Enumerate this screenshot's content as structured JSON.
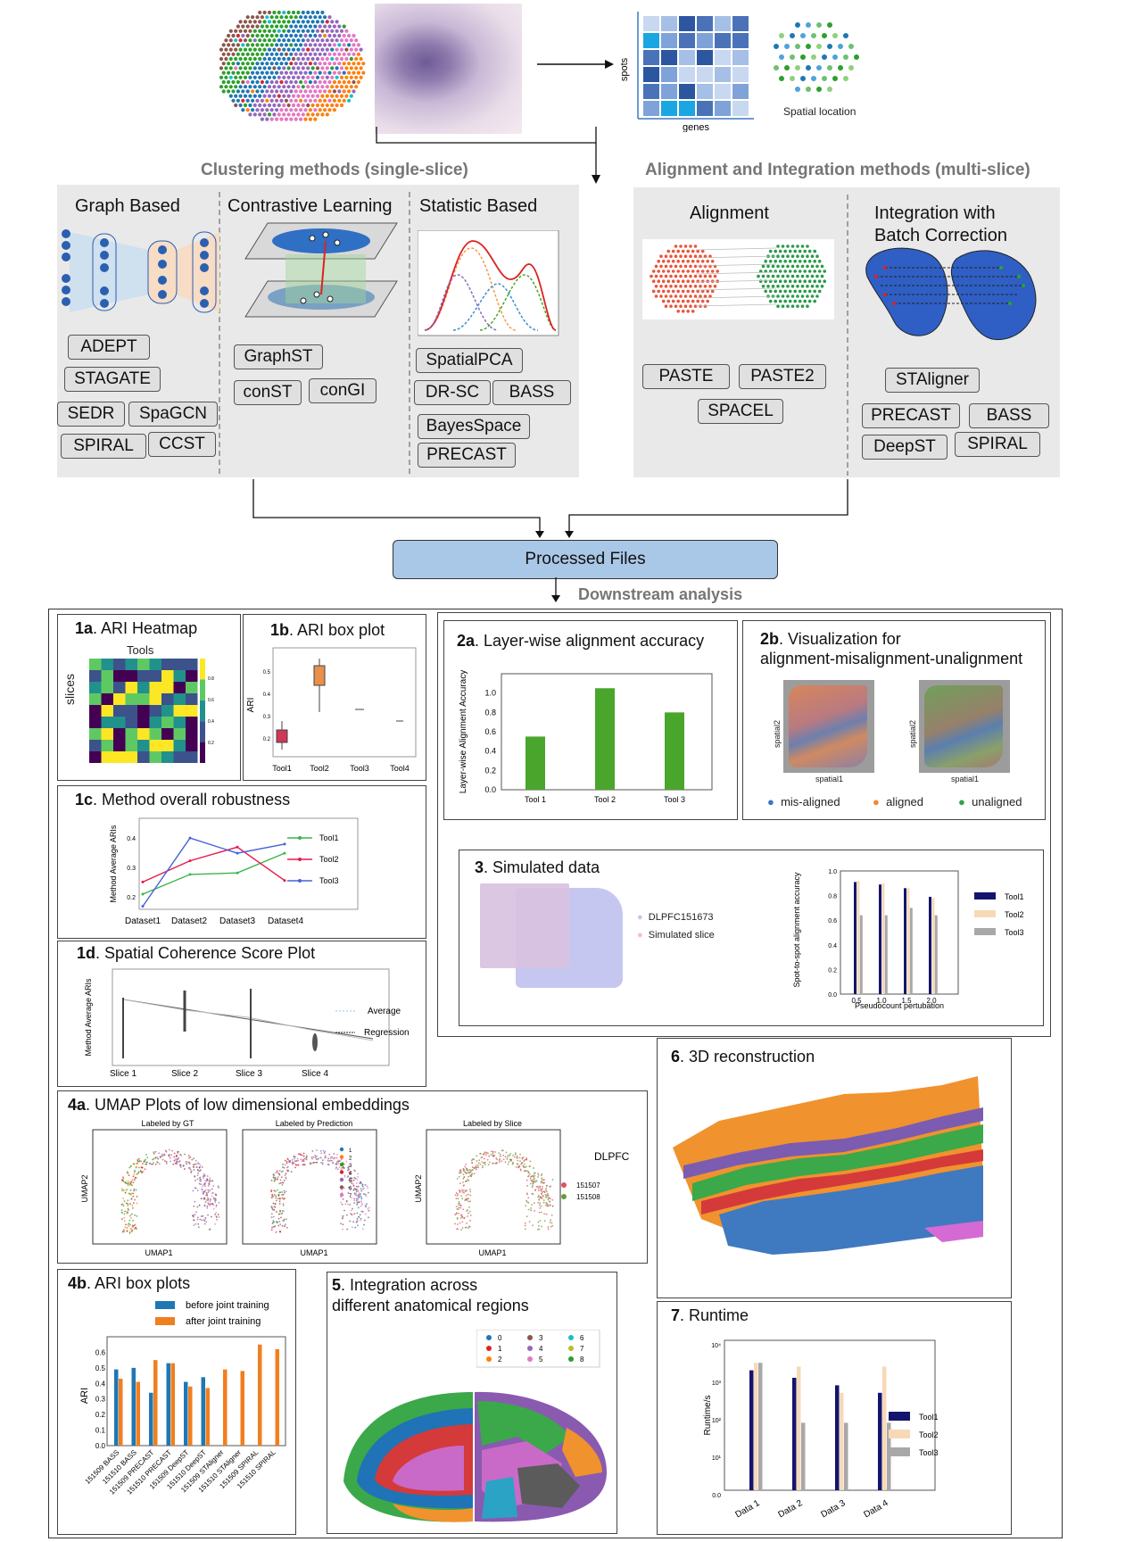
{
  "top": {
    "matrix_ylabel": "spots",
    "matrix_xlabel": "genes",
    "spatial_label": "Spatial location"
  },
  "sections": {
    "clustering": "Clustering methods (single-slice)",
    "alignment_integration": "Alignment and Integration methods (multi-slice)",
    "downstream": "Downstream  analysis"
  },
  "columns": {
    "graph": "Graph Based",
    "contrastive": "Contrastive Learning",
    "statistic": "Statistic Based",
    "alignment": "Alignment",
    "integration_l1": "Integration with",
    "integration_l2": "Batch Correction"
  },
  "tools": {
    "graph": [
      "ADEPT",
      "STAGATE",
      "SEDR",
      "SpaGCN",
      "SPIRAL",
      "CCST"
    ],
    "contrastive": [
      "GraphST",
      "conST",
      "conGI"
    ],
    "statistic": [
      "SpatialPCA",
      "DR-SC",
      "BASS",
      "BayesSpace",
      "PRECAST"
    ],
    "alignment": [
      "PASTE",
      "PASTE2",
      "SPACEL"
    ],
    "integration": [
      "STAligner",
      "PRECAST",
      "BASS",
      "DeepST",
      "SPIRAL"
    ]
  },
  "processed": "Processed Files",
  "panels": {
    "p1a": {
      "num": "1a",
      "title": ". ARI Heatmap",
      "xlabel": "Tools",
      "ylabel": "slices",
      "cbar": [
        "0.8",
        "0.6",
        "0.4",
        "0.2"
      ]
    },
    "p1b": {
      "num": "1b",
      "title": ". ARI box plot",
      "ylabel": "ARI",
      "yticks": [
        "0.5",
        "0.4",
        "0.3",
        "0.2"
      ],
      "xticks": [
        "Tool1",
        "Tool2",
        "Tool3",
        "Tool4"
      ]
    },
    "p1c": {
      "num": "1c",
      "title": ". Method overall robustness",
      "ylabel": "Method  Average  ARIs",
      "yticks": [
        "0.4",
        "0.3",
        "0.2"
      ],
      "xticks": [
        "Dataset1",
        "Dataset2",
        "Dataset3",
        "Dataset4"
      ],
      "legend": [
        "Tool1",
        "Tool2",
        "Tool3"
      ]
    },
    "p1d": {
      "num": "1d",
      "title": ". Spatial Coherence  Score Plot",
      "ylabel": "Method  Average ARIs",
      "xticks": [
        "Slice  1",
        "Slice  2",
        "Slice  3",
        "Slice  4"
      ],
      "legend": [
        "Average",
        "Regression"
      ]
    },
    "p2a": {
      "num": "2a",
      "title": ". Layer-wise alignment accuracy",
      "ylabel": "Layer-wise Alignment  Accuracy",
      "yticks": [
        "1.0",
        "0.8",
        "0.6",
        "0.4",
        "0.2",
        "0.0"
      ],
      "xticks": [
        "Tool 1",
        "Tool 2",
        "Tool 3"
      ]
    },
    "p2b": {
      "num": "2b",
      "title": ". Visualization for",
      "title2": "alignment-misalignment-unalignment",
      "xlabel": "spatial1",
      "ylabel": "spatial2",
      "legend": [
        "mis-aligned",
        "aligned",
        "unaligned"
      ]
    },
    "p3": {
      "num": "3",
      "title": ". Simulated  data",
      "legend": [
        "DLPFC151673",
        "Simulated  slice"
      ],
      "ylabel": "Spot-to-spot  alignment accuracy",
      "yticks": [
        "1.0",
        "0.8",
        "0.6",
        "0.4",
        "0.2",
        "0.0"
      ],
      "xticks": [
        "0.5",
        "1.0",
        "1.5",
        "2.0"
      ],
      "xlabel": "Pseudocount  pertubation",
      "bar_legend": [
        "Tool1",
        "Tool2",
        "Tool3"
      ]
    },
    "p4a": {
      "num": "4a",
      "title": ". UMAP Plots of low dimensional  embeddings",
      "sub": [
        "Labeled by GT",
        "Labeled by Prediction",
        "Labeled by Slice"
      ],
      "xlabel": "UMAP1",
      "ylabel": "UMAP2",
      "cluster_legend": [
        "1",
        "2",
        "3",
        "4",
        "5",
        "6",
        "7"
      ],
      "slice_title": "DLPFC",
      "slice_legend": [
        "151507",
        "151508"
      ]
    },
    "p4b": {
      "num": "4b",
      "title": ". ARI box plots",
      "legend": [
        "before joint training",
        "after joint training"
      ],
      "ylabel": "ARI",
      "yticks": [
        "0.6",
        "0.5",
        "0.4",
        "0.3",
        "0.2",
        "0.1",
        "0.0"
      ],
      "xticks": [
        "151509 BASS",
        "151510 BASS",
        "151509 PRECAST",
        "151510 PRECAST",
        "151509 DeepST",
        "151510 DeepST",
        "151509 STAligner",
        "151510 STAligner",
        "151509 SPIRAL",
        "151510 SPIRAL"
      ]
    },
    "p5": {
      "num": "5",
      "title": ". Integration across",
      "title2": "different anatomical regions",
      "legend": [
        "0",
        "1",
        "2",
        "3",
        "4",
        "5",
        "6",
        "7",
        "8"
      ]
    },
    "p6": {
      "num": "6",
      "title": ". 3D reconstruction"
    },
    "p7": {
      "num": "7",
      "title": ". Runtime",
      "ylabel": "Runtime/s",
      "yticks": [
        "10⁴",
        "10³",
        "10²",
        "10¹",
        "0.0"
      ],
      "xticks": [
        "Data  1",
        "Data  2",
        "Data  3",
        "Data  4"
      ],
      "legend": [
        "Tool1",
        "Tool2",
        "Tool3"
      ]
    }
  },
  "colors": {
    "gray_panel": "#e9e9e9",
    "processed_box": "#a9c7e6",
    "bar_green": "#4aa52c",
    "navy": "#14146e",
    "peach": "#f7d9b8",
    "gray_bar": "#a8a8a8",
    "blue_4b": "#1f77b4",
    "orange_4b": "#f07f20"
  },
  "chart_data": [
    {
      "type": "bar",
      "title": "Layer-wise alignment accuracy",
      "ylabel": "Layer-wise Alignment  Accuracy",
      "categories": [
        "Tool 1",
        "Tool 2",
        "Tool 3"
      ],
      "values": [
        0.55,
        1.05,
        0.8
      ],
      "ylim": [
        0,
        1.2
      ]
    },
    {
      "type": "line",
      "title": "Method overall robustness",
      "ylabel": "Method  Average  ARIs",
      "categories": [
        "Dataset1",
        "Dataset2",
        "Dataset3",
        "Dataset4"
      ],
      "series": [
        {
          "name": "Tool1",
          "values": [
            0.2,
            0.265,
            0.27,
            0.335
          ]
        },
        {
          "name": "Tool2",
          "values": [
            0.24,
            0.31,
            0.355,
            0.245
          ]
        },
        {
          "name": "Tool3",
          "values": [
            0.16,
            0.385,
            0.335,
            0.365
          ]
        }
      ],
      "ylim": [
        0.15,
        0.45
      ]
    },
    {
      "type": "bar",
      "title": "Simulated  data",
      "ylabel": "Spot-to-spot  alignment accuracy",
      "xlabel": "Pseudocount  pertubation",
      "categories": [
        "0.5",
        "1.0",
        "1.5",
        "2.0"
      ],
      "series": [
        {
          "name": "Tool1",
          "values": [
            0.91,
            0.89,
            0.86,
            0.79
          ]
        },
        {
          "name": "Tool2",
          "values": [
            0.92,
            0.9,
            0.86,
            0.78
          ]
        },
        {
          "name": "Tool3",
          "values": [
            0.64,
            0.64,
            0.7,
            0.64
          ]
        }
      ],
      "ylim": [
        0,
        1.0
      ]
    },
    {
      "type": "bar",
      "title": "ARI box plots",
      "ylabel": "ARI",
      "categories": [
        "151509 BASS",
        "151510 BASS",
        "151509 PRECAST",
        "151510 PRECAST",
        "151509 DeepST",
        "151510 DeepST",
        "151509 STAligner",
        "151510 STAligner",
        "151509 SPIRAL",
        "151510 SPIRAL"
      ],
      "series": [
        {
          "name": "before joint training",
          "values": [
            0.49,
            0.5,
            0.34,
            0.53,
            0.41,
            0.44,
            0.0,
            0.0,
            0.0,
            0.0
          ]
        },
        {
          "name": "after joint training",
          "values": [
            0.43,
            0.41,
            0.55,
            0.53,
            0.38,
            0.37,
            0.49,
            0.48,
            0.65,
            0.62
          ]
        }
      ],
      "ylim": [
        0,
        0.7
      ]
    },
    {
      "type": "bar",
      "title": "Runtime",
      "ylabel": "Runtime/s",
      "categories": [
        "Data  1",
        "Data  2",
        "Data  3",
        "Data  4"
      ],
      "series": [
        {
          "name": "Tool1",
          "values": [
            3.2,
            3.0,
            2.8,
            2.6
          ]
        },
        {
          "name": "Tool2",
          "values": [
            3.4,
            3.3,
            2.6,
            3.3
          ]
        },
        {
          "name": "Tool3",
          "values": [
            3.4,
            1.8,
            1.8,
            1.8
          ]
        }
      ],
      "ylim": [
        0,
        4
      ]
    }
  ]
}
